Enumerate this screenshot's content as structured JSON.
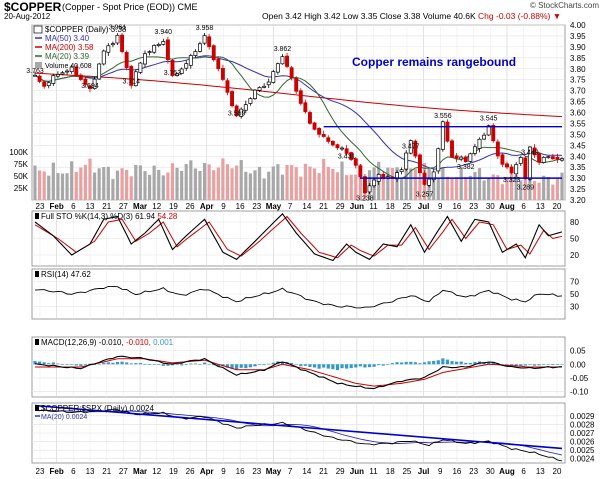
{
  "header": {
    "symbol": "$COPPER",
    "description": "(Copper - Spot Price (EOD))  CME",
    "date": "20-Aug-2012",
    "open": "Open 3.42",
    "high": "High 3.42",
    "low": "Low 3.35",
    "close": "Close 3.38",
    "volume": "Volume 40.6K",
    "change": "Chg -0.03 (-0.88%)",
    "change_arrow": "▼",
    "copyright": "© StockCharts.com"
  },
  "colors": {
    "up": "#000000",
    "down": "#cc0000",
    "ma50": "#3333aa",
    "ma200": "#cc0000",
    "ma20": "#336633",
    "volume_up": "#a8a8a8",
    "volume_down": "#e8a0a0",
    "trendline": "#0000cc",
    "macd_hist": "#3399cc",
    "signal": "#cc0000",
    "annotation": "#0000cc"
  },
  "chart_data": {
    "type": "candlestick",
    "x_axis": {
      "labels": [
        "23",
        "Feb",
        "6",
        "13",
        "21",
        "27",
        "Mar",
        "12",
        "19",
        "26",
        "Apr",
        "9",
        "16",
        "23",
        "May",
        "7",
        "14",
        "21",
        "29",
        "Jun",
        "11",
        "18",
        "25",
        "Jul",
        "9",
        "16",
        "23",
        "30",
        "Aug",
        "6",
        "13",
        "20"
      ]
    },
    "price_panel": {
      "legend": {
        "title": "$COPPER (Daily) 3.38",
        "ma50": "MA(50) 3.40",
        "ma200": "MA(200) 3.58",
        "ma20": "MA(20) 3.39",
        "volume": "Volume 40,608"
      },
      "ylim": [
        3.2,
        4.0
      ],
      "y_ticks": [
        "4.00",
        "3.95",
        "3.90",
        "3.85",
        "3.80",
        "3.75",
        "3.70",
        "3.65",
        "3.60",
        "3.55",
        "3.50",
        "3.45",
        "3.40",
        "3.35",
        "3.30",
        "3.25",
        "3.20"
      ],
      "volume_ticks": [
        "100K",
        "75K",
        "50K",
        "25K"
      ],
      "annotation": "Copper remains rangebound",
      "resistance_level": 3.535,
      "support_level": 3.3,
      "value_labels": [
        {
          "label": "3.763",
          "index": 0,
          "value": 3.763
        },
        {
          "label": "3.694",
          "index": 12,
          "value": 3.694
        },
        {
          "label": "3.961",
          "index": 18,
          "value": 3.961
        },
        {
          "label": "3.714",
          "index": 21,
          "value": 3.714
        },
        {
          "label": "3.940",
          "index": 28,
          "value": 3.94
        },
        {
          "label": "3.753",
          "index": 30,
          "value": 3.753
        },
        {
          "label": "3.958",
          "index": 37,
          "value": 3.958
        },
        {
          "label": "3.569",
          "index": 44,
          "value": 3.569
        },
        {
          "label": "3.862",
          "index": 54,
          "value": 3.862
        },
        {
          "label": "3.431",
          "index": 68,
          "value": 3.431
        },
        {
          "label": "3.238",
          "index": 72,
          "value": 3.238
        },
        {
          "label": "3.477",
          "index": 82,
          "value": 3.477
        },
        {
          "label": "3.257",
          "index": 85,
          "value": 3.257
        },
        {
          "label": "3.556",
          "index": 89,
          "value": 3.556
        },
        {
          "label": "3.382",
          "index": 94,
          "value": 3.382
        },
        {
          "label": "3.545",
          "index": 99,
          "value": 3.545
        },
        {
          "label": "3.323",
          "index": 104,
          "value": 3.323
        },
        {
          "label": "3.449",
          "index": 108,
          "value": 3.449
        },
        {
          "label": "3.289",
          "index": 107,
          "value": 3.289
        }
      ],
      "anchors": [
        [
          0,
          3.76
        ],
        [
          2,
          3.72
        ],
        [
          5,
          3.78
        ],
        [
          8,
          3.8
        ],
        [
          12,
          3.7
        ],
        [
          15,
          3.88
        ],
        [
          18,
          3.95
        ],
        [
          21,
          3.73
        ],
        [
          24,
          3.87
        ],
        [
          28,
          3.93
        ],
        [
          30,
          3.76
        ],
        [
          33,
          3.82
        ],
        [
          37,
          3.95
        ],
        [
          40,
          3.8
        ],
        [
          44,
          3.58
        ],
        [
          48,
          3.7
        ],
        [
          51,
          3.74
        ],
        [
          54,
          3.86
        ],
        [
          57,
          3.7
        ],
        [
          60,
          3.55
        ],
        [
          63,
          3.48
        ],
        [
          66,
          3.44
        ],
        [
          68,
          3.42
        ],
        [
          70,
          3.36
        ],
        [
          72,
          3.24
        ],
        [
          75,
          3.31
        ],
        [
          78,
          3.3
        ],
        [
          80,
          3.35
        ],
        [
          82,
          3.47
        ],
        [
          85,
          3.26
        ],
        [
          87,
          3.33
        ],
        [
          89,
          3.55
        ],
        [
          91,
          3.4
        ],
        [
          94,
          3.38
        ],
        [
          97,
          3.47
        ],
        [
          99,
          3.54
        ],
        [
          101,
          3.4
        ],
        [
          104,
          3.32
        ],
        [
          106,
          3.4
        ],
        [
          107,
          3.29
        ],
        [
          108,
          3.44
        ],
        [
          110,
          3.38
        ],
        [
          112,
          3.4
        ],
        [
          115,
          3.38
        ]
      ],
      "volume_anchors": [
        [
          0,
          55
        ],
        [
          10,
          70
        ],
        [
          20,
          60
        ],
        [
          30,
          65
        ],
        [
          40,
          75
        ],
        [
          50,
          60
        ],
        [
          60,
          70
        ],
        [
          70,
          60
        ],
        [
          80,
          65
        ],
        [
          90,
          55
        ],
        [
          100,
          50
        ],
        [
          115,
          45
        ]
      ]
    },
    "stochastic_panel": {
      "title": "Full STO %K(14,3) %D(3) 61.94",
      "title_d": "54.28",
      "ylim": [
        0,
        100
      ],
      "y_ticks": [
        "80",
        "50",
        "20"
      ],
      "k_anchors": [
        [
          0,
          80
        ],
        [
          4,
          55
        ],
        [
          8,
          20
        ],
        [
          12,
          40
        ],
        [
          15,
          85
        ],
        [
          18,
          90
        ],
        [
          21,
          40
        ],
        [
          24,
          60
        ],
        [
          27,
          85
        ],
        [
          30,
          30
        ],
        [
          33,
          55
        ],
        [
          37,
          85
        ],
        [
          41,
          25
        ],
        [
          44,
          12
        ],
        [
          48,
          45
        ],
        [
          51,
          70
        ],
        [
          54,
          95
        ],
        [
          57,
          60
        ],
        [
          61,
          22
        ],
        [
          65,
          10
        ],
        [
          68,
          40
        ],
        [
          70,
          25
        ],
        [
          73,
          12
        ],
        [
          76,
          40
        ],
        [
          79,
          35
        ],
        [
          82,
          75
        ],
        [
          85,
          25
        ],
        [
          88,
          65
        ],
        [
          90,
          90
        ],
        [
          93,
          45
        ],
        [
          96,
          85
        ],
        [
          99,
          80
        ],
        [
          102,
          25
        ],
        [
          105,
          40
        ],
        [
          107,
          15
        ],
        [
          110,
          75
        ],
        [
          112,
          55
        ],
        [
          115,
          62
        ]
      ],
      "d_anchors": [
        [
          0,
          75
        ],
        [
          5,
          50
        ],
        [
          9,
          25
        ],
        [
          13,
          45
        ],
        [
          16,
          80
        ],
        [
          19,
          85
        ],
        [
          22,
          45
        ],
        [
          25,
          60
        ],
        [
          28,
          80
        ],
        [
          31,
          35
        ],
        [
          34,
          55
        ],
        [
          38,
          80
        ],
        [
          42,
          30
        ],
        [
          45,
          18
        ],
        [
          49,
          45
        ],
        [
          52,
          68
        ],
        [
          55,
          90
        ],
        [
          58,
          60
        ],
        [
          62,
          25
        ],
        [
          66,
          15
        ],
        [
          69,
          38
        ],
        [
          71,
          28
        ],
        [
          74,
          18
        ],
        [
          77,
          38
        ],
        [
          80,
          38
        ],
        [
          83,
          70
        ],
        [
          86,
          30
        ],
        [
          89,
          62
        ],
        [
          91,
          85
        ],
        [
          94,
          50
        ],
        [
          97,
          80
        ],
        [
          100,
          75
        ],
        [
          103,
          30
        ],
        [
          106,
          38
        ],
        [
          108,
          22
        ],
        [
          111,
          65
        ],
        [
          113,
          50
        ],
        [
          115,
          54
        ]
      ]
    },
    "rsi_panel": {
      "title": "RSI(14) 47.62",
      "ylim": [
        10,
        90
      ],
      "y_ticks": [
        "70",
        "50",
        "30"
      ],
      "anchors": [
        [
          0,
          58
        ],
        [
          8,
          50
        ],
        [
          15,
          60
        ],
        [
          18,
          62
        ],
        [
          22,
          50
        ],
        [
          28,
          58
        ],
        [
          32,
          48
        ],
        [
          37,
          58
        ],
        [
          44,
          38
        ],
        [
          50,
          50
        ],
        [
          54,
          58
        ],
        [
          60,
          40
        ],
        [
          66,
          30
        ],
        [
          72,
          28
        ],
        [
          78,
          38
        ],
        [
          82,
          48
        ],
        [
          86,
          38
        ],
        [
          89,
          56
        ],
        [
          94,
          45
        ],
        [
          99,
          55
        ],
        [
          104,
          42
        ],
        [
          107,
          38
        ],
        [
          110,
          50
        ],
        [
          115,
          47.62
        ]
      ]
    },
    "macd_panel": {
      "title": "MACD(12,26,9) -0.010,",
      "signal_value": "-0.010,",
      "hist_value": "0.001",
      "ylim": [
        -0.12,
        0.1
      ],
      "y_ticks": [
        "0.05",
        "0.00",
        "-0.05",
        "-0.10"
      ],
      "macd_anchors": [
        [
          0,
          0.0
        ],
        [
          10,
          -0.015
        ],
        [
          18,
          0.03
        ],
        [
          24,
          0.02
        ],
        [
          30,
          0.0
        ],
        [
          37,
          0.02
        ],
        [
          44,
          -0.04
        ],
        [
          50,
          -0.02
        ],
        [
          54,
          0.01
        ],
        [
          60,
          -0.03
        ],
        [
          66,
          -0.07
        ],
        [
          70,
          -0.08
        ],
        [
          74,
          -0.09
        ],
        [
          80,
          -0.06
        ],
        [
          85,
          -0.05
        ],
        [
          89,
          -0.01
        ],
        [
          94,
          -0.01
        ],
        [
          99,
          0.01
        ],
        [
          104,
          -0.01
        ],
        [
          108,
          -0.015
        ],
        [
          112,
          -0.01
        ],
        [
          115,
          -0.01
        ]
      ],
      "signal_anchors": [
        [
          0,
          -0.01
        ],
        [
          10,
          -0.01
        ],
        [
          18,
          0.02
        ],
        [
          24,
          0.02
        ],
        [
          30,
          0.005
        ],
        [
          37,
          0.015
        ],
        [
          44,
          -0.02
        ],
        [
          50,
          -0.02
        ],
        [
          54,
          0.0
        ],
        [
          60,
          -0.02
        ],
        [
          66,
          -0.05
        ],
        [
          70,
          -0.07
        ],
        [
          74,
          -0.08
        ],
        [
          80,
          -0.07
        ],
        [
          85,
          -0.055
        ],
        [
          89,
          -0.03
        ],
        [
          94,
          -0.015
        ],
        [
          99,
          0.0
        ],
        [
          104,
          -0.005
        ],
        [
          108,
          -0.01
        ],
        [
          112,
          -0.01
        ],
        [
          115,
          -0.01
        ]
      ]
    },
    "ratio_panel": {
      "title": "$COPPER:$SPX (Daily) 0.0024",
      "ma_label": "MA(20) 0.0024",
      "ylim": [
        0.00235,
        0.00305
      ],
      "y_ticks": [
        "0.0029",
        "0.0028",
        "0.0027",
        "0.0026",
        "0.0025",
        "0.0024"
      ],
      "anchors": [
        [
          0,
          0.00297
        ],
        [
          8,
          0.00294
        ],
        [
          15,
          0.00296
        ],
        [
          18,
          0.00297
        ],
        [
          22,
          0.00292
        ],
        [
          28,
          0.00293
        ],
        [
          32,
          0.00287
        ],
        [
          37,
          0.00289
        ],
        [
          44,
          0.00276
        ],
        [
          50,
          0.0028
        ],
        [
          54,
          0.00282
        ],
        [
          60,
          0.00272
        ],
        [
          66,
          0.00263
        ],
        [
          72,
          0.00257
        ],
        [
          78,
          0.00258
        ],
        [
          82,
          0.00261
        ],
        [
          86,
          0.00256
        ],
        [
          89,
          0.00262
        ],
        [
          94,
          0.00258
        ],
        [
          99,
          0.0026
        ],
        [
          104,
          0.00252
        ],
        [
          108,
          0.00248
        ],
        [
          112,
          0.00242
        ],
        [
          115,
          0.00238
        ]
      ],
      "trendline": [
        [
          0,
          0.00302
        ],
        [
          115,
          0.00252
        ]
      ]
    }
  }
}
